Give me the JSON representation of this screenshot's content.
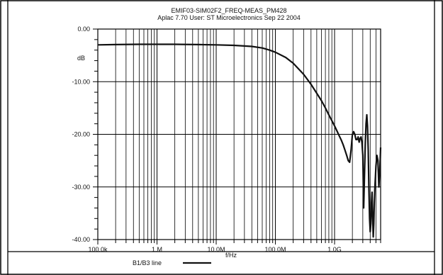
{
  "chart_data": {
    "type": "line",
    "title": "EMIF03-SIM02F2_FREQ-MEAS_PM428",
    "subtitle": "Aplac 7.70 User: ST Microelectronics  Sep 22 2004",
    "ylabel": "dB",
    "xlabel": "f/Hz",
    "x_scale": "log",
    "xlim": [
      100000,
      6000000000
    ],
    "ylim": [
      -40,
      0
    ],
    "grid": true,
    "x_tick_labels": [
      "100.0k",
      "1.M",
      "10.0M",
      "100.0M",
      "1.0G"
    ],
    "x_tick_values": [
      100000,
      1000000,
      10000000,
      100000000,
      1000000000
    ],
    "y_tick_labels": [
      "0.00",
      "-10.00",
      "-20.00",
      "-30.00",
      "-40.00"
    ],
    "y_tick_values": [
      0,
      -10,
      -20,
      -30,
      -40
    ],
    "legend": {
      "label": "B1/B3 line",
      "placement": "bottom"
    },
    "series": [
      {
        "name": "B1/B3 line",
        "color": "#111111",
        "x": [
          100000,
          200000,
          500000,
          1000000,
          2000000,
          5000000,
          10000000,
          20000000,
          40000000,
          60000000,
          80000000,
          100000000,
          150000000,
          200000000,
          300000000,
          400000000,
          500000000,
          600000000,
          700000000,
          800000000,
          900000000,
          1000000000,
          1100000000,
          1200000000,
          1300000000,
          1400000000,
          1500000000,
          1600000000,
          1700000000,
          1800000000,
          1900000000,
          2000000000,
          2100000000,
          2200000000,
          2300000000,
          2400000000,
          2500000000,
          2600000000,
          2700000000,
          2800000000,
          2900000000,
          3000000000,
          3100000000,
          3200000000,
          3300000000,
          3400000000,
          3500000000,
          3600000000,
          3700000000,
          3800000000,
          3900000000,
          4000000000,
          4100000000,
          4200000000,
          4300000000,
          4400000000,
          4500000000,
          4600000000,
          4700000000,
          4800000000,
          4900000000,
          5000000000,
          5200000000,
          5400000000,
          5600000000,
          5800000000,
          6000000000
        ],
        "values": [
          -3.0,
          -2.95,
          -2.9,
          -2.9,
          -2.9,
          -2.95,
          -3.0,
          -3.1,
          -3.3,
          -3.6,
          -4.0,
          -4.4,
          -5.4,
          -6.5,
          -8.6,
          -10.5,
          -12.2,
          -13.6,
          -15.0,
          -16.3,
          -17.4,
          -18.4,
          -19.4,
          -20.3,
          -21.1,
          -22.0,
          -23.0,
          -24.0,
          -25.0,
          -25.3,
          -23.0,
          -20.0,
          -19.5,
          -20.0,
          -21.0,
          -21.0,
          -20.5,
          -21.5,
          -20.8,
          -20.5,
          -21.5,
          -24.0,
          -34.0,
          -28.0,
          -22.0,
          -18.0,
          -16.3,
          -18.5,
          -23.0,
          -30.0,
          -36.0,
          -38.5,
          -37.0,
          -33.0,
          -31.0,
          -36.0,
          -39.5,
          -37.0,
          -33.0,
          -30.0,
          -28.0,
          -26.0,
          -24.0,
          -25.0,
          -30.0,
          -27.0,
          -22.5
        ]
      }
    ]
  }
}
